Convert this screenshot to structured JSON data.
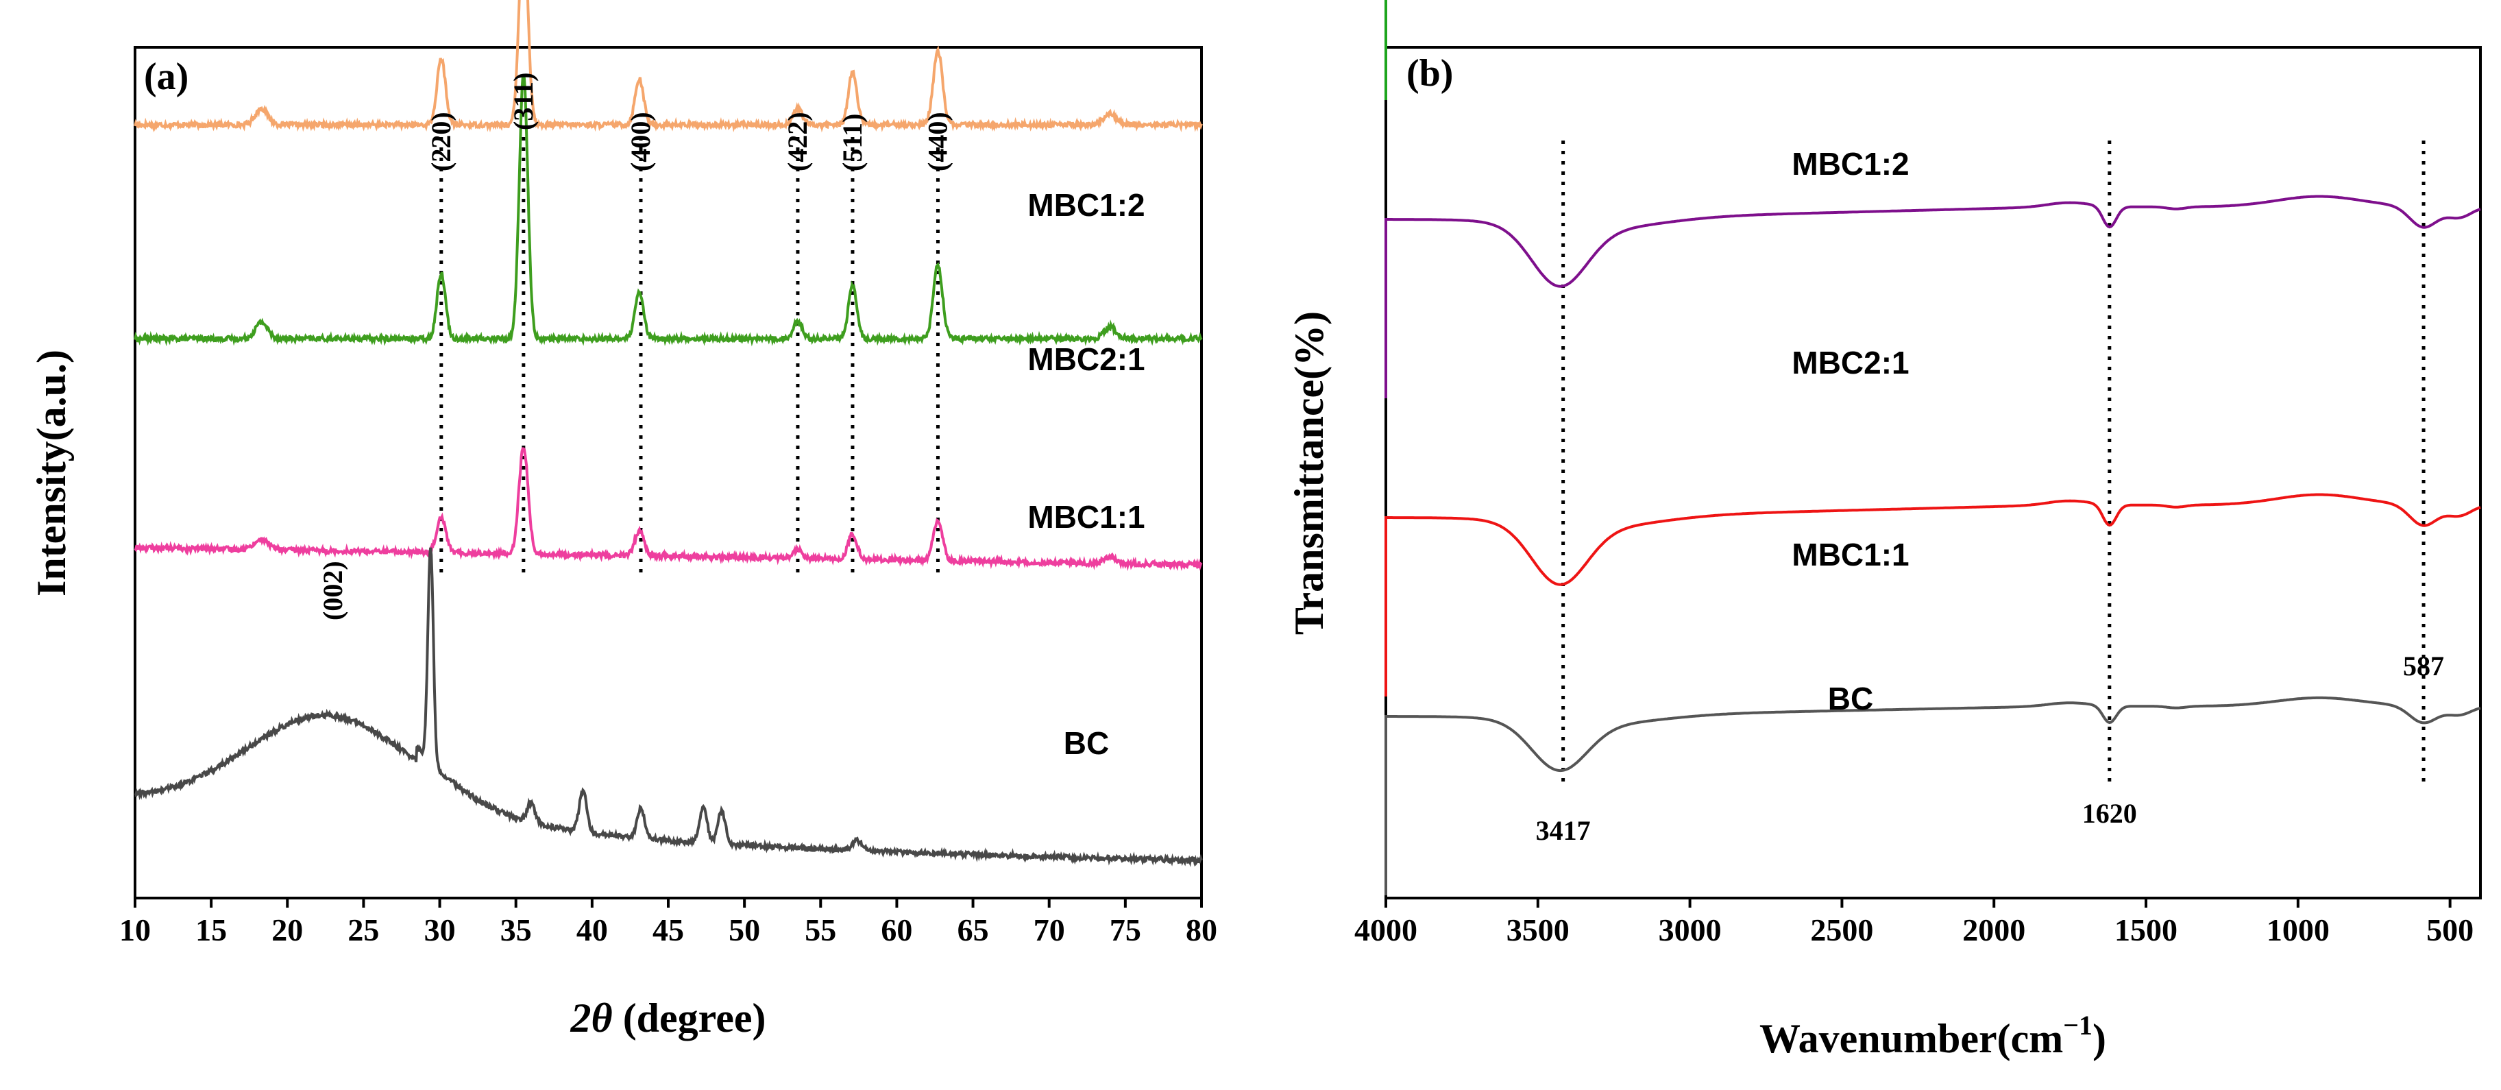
{
  "chart_data": [
    {
      "id": "a",
      "panel_label": "(a)",
      "type": "line",
      "title": "",
      "xlabel_italic": "2θ",
      "xlabel_unit": "(degree)",
      "ylabel": "Intensity(a.u.)",
      "xlim": [
        10,
        80
      ],
      "xticks": [
        "10",
        "15",
        "20",
        "25",
        "30",
        "35",
        "40",
        "45",
        "50",
        "55",
        "60",
        "65",
        "70",
        "75",
        "80"
      ],
      "yticks": [],
      "series": [
        {
          "name": "MBC1:2",
          "color": "#F5A66C",
          "offset": 3.95,
          "noise": 0.03,
          "slope": 0.0,
          "peaks": [
            [
              18.3,
              0.1,
              0.4
            ],
            [
              30.1,
              0.4,
              0.28
            ],
            [
              35.5,
              1.25,
              0.28
            ],
            [
              43.1,
              0.28,
              0.28
            ],
            [
              53.5,
              0.1,
              0.3
            ],
            [
              57.1,
              0.32,
              0.28
            ],
            [
              62.7,
              0.45,
              0.3
            ],
            [
              74.0,
              0.07,
              0.4
            ]
          ]
        },
        {
          "name": "MBC2:1",
          "color": "#3E9E1E",
          "offset": 2.65,
          "noise": 0.03,
          "slope": 0.0,
          "peaks": [
            [
              18.3,
              0.1,
              0.4
            ],
            [
              30.1,
              0.4,
              0.28
            ],
            [
              35.5,
              1.6,
              0.28
            ],
            [
              43.1,
              0.28,
              0.28
            ],
            [
              53.5,
              0.1,
              0.3
            ],
            [
              57.1,
              0.32,
              0.28
            ],
            [
              62.7,
              0.45,
              0.3
            ],
            [
              74.0,
              0.07,
              0.4
            ]
          ]
        },
        {
          "name": "MBC1:1",
          "color": "#EE3E9E",
          "offset": 1.38,
          "noise": 0.03,
          "slope": -0.0015,
          "peaks": [
            [
              18.3,
              0.06,
              0.5
            ],
            [
              30.1,
              0.22,
              0.3
            ],
            [
              35.5,
              0.65,
              0.3
            ],
            [
              43.1,
              0.15,
              0.3
            ],
            [
              53.5,
              0.05,
              0.3
            ],
            [
              57.1,
              0.15,
              0.3
            ],
            [
              62.7,
              0.25,
              0.3
            ],
            [
              74.0,
              0.04,
              0.4
            ]
          ]
        },
        {
          "name": "BC",
          "color": "#484848",
          "offset": -0.6,
          "noise": 0.03,
          "slope": 0.0,
          "broad": true,
          "peaks": [
            [
              29.4,
              1.3,
              0.18
            ],
            [
              36.0,
              0.12,
              0.25
            ],
            [
              39.4,
              0.25,
              0.25
            ],
            [
              43.2,
              0.18,
              0.25
            ],
            [
              47.3,
              0.22,
              0.25
            ],
            [
              48.5,
              0.2,
              0.25
            ],
            [
              57.4,
              0.06,
              0.3
            ]
          ]
        }
      ],
      "reference_lines": [
        30.1,
        35.5,
        43.2,
        53.5,
        57.1,
        62.7
      ],
      "peak_labels": [
        {
          "text": "(220)",
          "x": 30.1
        },
        {
          "text": "(311)",
          "x": 35.5
        },
        {
          "text": "(400)",
          "x": 43.2
        },
        {
          "text": "(422)",
          "x": 53.5
        },
        {
          "text": "(511)",
          "x": 57.1
        },
        {
          "text": "(440)",
          "x": 62.7
        }
      ],
      "broad_label": {
        "text": "(002)",
        "x": 23.0
      }
    },
    {
      "id": "b",
      "panel_label": "(b)",
      "type": "line",
      "title": "",
      "xlabel": "Wavenumber(cm",
      "xlabel_sup": "−1",
      "xlabel_close": ")",
      "ylabel": "Transmittance(%)",
      "xlim": [
        4000,
        400
      ],
      "xticks": [
        "4000",
        "3500",
        "3000",
        "2500",
        "2000",
        "1500",
        "1000",
        "500"
      ],
      "yticks": [],
      "series": [
        {
          "name": "MBC1:2",
          "color": "#1DA51D",
          "offset": 6.0,
          "scale": 0.75
        },
        {
          "name": "MBC2:1",
          "color": "#7E0F8C",
          "offset": 4.5,
          "scale": 1.05
        },
        {
          "name": "MBC1:1",
          "color": "#EE1414",
          "offset": 3.0,
          "scale": 1.05
        },
        {
          "name": "BC",
          "color": "#555555",
          "offset": 2.0,
          "scale": 0.85
        }
      ],
      "reference_lines": [
        3417,
        1620,
        587
      ],
      "band_labels": [
        "3417",
        "1620",
        "587"
      ]
    }
  ]
}
